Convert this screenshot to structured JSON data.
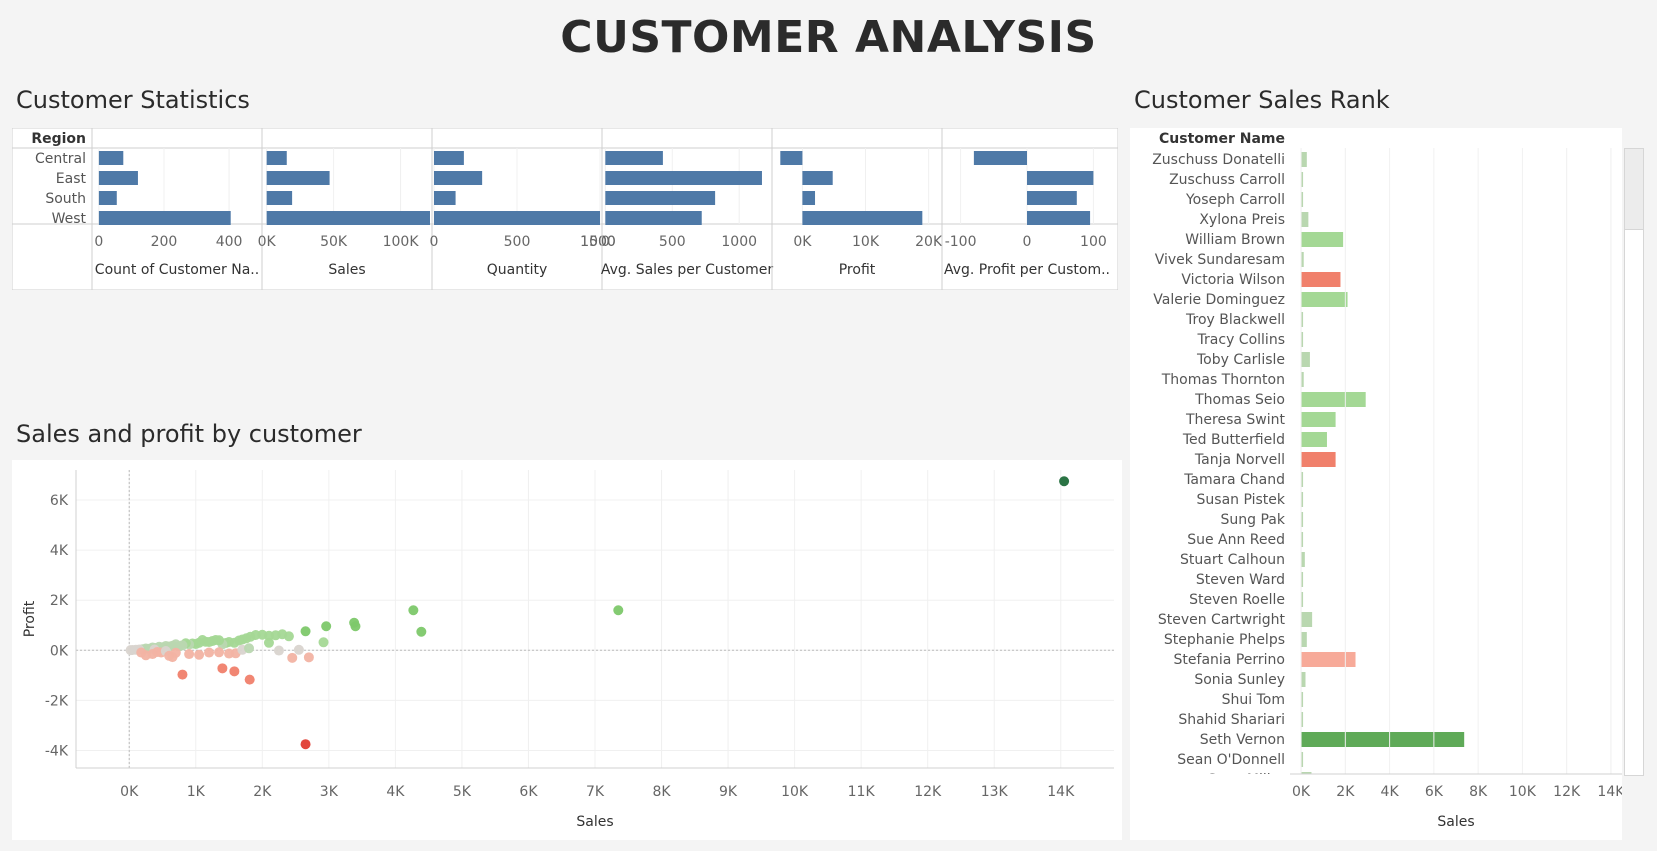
{
  "dashboard": {
    "title": "CUSTOMER ANALYSIS"
  },
  "sections": {
    "stats_title": "Customer Statistics",
    "scatter_title": "Sales and profit by customer",
    "rank_title": "Customer Sales Rank"
  },
  "colors": {
    "bar_blue": "#4e79a7",
    "profit_high": "#1f6b3a",
    "profit_mid": "#7dc86a",
    "profit_low_pos": "#b9d7b0",
    "profit_neutral": "#d9d4cf",
    "profit_low_neg": "#f2b3a3",
    "profit_mid_neg": "#f0806b",
    "profit_very_neg": "#e03c31"
  },
  "chart_data": [
    {
      "type": "bar",
      "title": "Customer Statistics",
      "row_header": "Region",
      "categories": [
        "Central",
        "East",
        "South",
        "West"
      ],
      "series": [
        {
          "name": "Count of Customer Na..",
          "values": [
            75,
            120,
            55,
            405
          ],
          "xlim": [
            -15,
            495
          ],
          "ticks": [
            0,
            200,
            400
          ],
          "tick_labels": [
            "0",
            "200",
            "400"
          ]
        },
        {
          "name": "Sales",
          "values": [
            15000,
            47000,
            19000,
            122000
          ],
          "xlim": [
            -2000,
            122000
          ],
          "ticks": [
            0,
            50000,
            100000
          ],
          "tick_labels": [
            "0K",
            "50K",
            "100K"
          ]
        },
        {
          "name": "Quantity",
          "values": [
            180,
            290,
            130,
            1000
          ],
          "xlim": [
            0,
            1000
          ],
          "ticks": [
            0,
            500,
            1000,
            1500
          ],
          "tick_labels": [
            "0",
            "500",
            "1000",
            "1500"
          ]
        },
        {
          "name": "Avg. Sales per Customer",
          "values": [
            430,
            1170,
            820,
            720
          ],
          "xlim": [
            -10,
            1230
          ],
          "ticks": [
            0,
            500,
            1000
          ],
          "tick_labels": [
            "0",
            "500",
            "1000"
          ]
        },
        {
          "name": "Profit",
          "values": [
            -3500,
            4800,
            2000,
            19000
          ],
          "xlim": [
            -4500,
            21800
          ],
          "ticks": [
            0,
            10000,
            20000
          ],
          "tick_labels": [
            "0K",
            "10K",
            "20K"
          ]
        },
        {
          "name": "Avg. Profit per Custom..",
          "values": [
            -80,
            100,
            75,
            95
          ],
          "xlim": [
            -125,
            125
          ],
          "ticks": [
            -100,
            0,
            100
          ],
          "tick_labels": [
            "-100",
            "0",
            "100"
          ]
        }
      ]
    },
    {
      "type": "scatter",
      "title": "Sales and profit by customer",
      "xlabel": "Sales",
      "ylabel": "Profit",
      "xlim": [
        -800,
        14800
      ],
      "ylim": [
        -4700,
        7200
      ],
      "x_ticks": [
        0,
        1000,
        2000,
        3000,
        4000,
        5000,
        6000,
        7000,
        8000,
        9000,
        10000,
        11000,
        12000,
        13000,
        14000
      ],
      "x_tick_labels": [
        "0K",
        "1K",
        "2K",
        "3K",
        "4K",
        "5K",
        "6K",
        "7K",
        "8K",
        "9K",
        "10K",
        "11K",
        "12K",
        "13K",
        "14K"
      ],
      "y_ticks": [
        -4000,
        -2000,
        0,
        2000,
        4000,
        6000
      ],
      "y_tick_labels": [
        "-4K",
        "-2K",
        "0K",
        "2K",
        "4K",
        "6K"
      ],
      "points": [
        [
          14050,
          6750
        ],
        [
          7350,
          1600
        ],
        [
          4270,
          1600
        ],
        [
          4390,
          740
        ],
        [
          3380,
          1100
        ],
        [
          3400,
          960
        ],
        [
          2960,
          960
        ],
        [
          2920,
          320
        ],
        [
          2650,
          760
        ],
        [
          2700,
          -280
        ],
        [
          2400,
          560
        ],
        [
          2450,
          -300
        ],
        [
          2300,
          640
        ],
        [
          2200,
          600
        ],
        [
          2100,
          580
        ],
        [
          2000,
          620
        ],
        [
          1900,
          610
        ],
        [
          1820,
          540
        ],
        [
          1760,
          480
        ],
        [
          1700,
          430
        ],
        [
          1650,
          390
        ],
        [
          1580,
          300
        ],
        [
          1500,
          330
        ],
        [
          1450,
          290
        ],
        [
          1400,
          240
        ],
        [
          1350,
          400
        ],
        [
          1300,
          410
        ],
        [
          1250,
          370
        ],
        [
          1200,
          330
        ],
        [
          1150,
          340
        ],
        [
          1100,
          410
        ],
        [
          1050,
          300
        ],
        [
          1000,
          250
        ],
        [
          950,
          270
        ],
        [
          900,
          230
        ],
        [
          850,
          280
        ],
        [
          800,
          200
        ],
        [
          750,
          160
        ],
        [
          700,
          240
        ],
        [
          650,
          180
        ],
        [
          600,
          150
        ],
        [
          550,
          170
        ],
        [
          500,
          120
        ],
        [
          450,
          140
        ],
        [
          400,
          90
        ],
        [
          350,
          110
        ],
        [
          300,
          60
        ],
        [
          250,
          70
        ],
        [
          200,
          40
        ],
        [
          150,
          30
        ],
        [
          100,
          20
        ],
        [
          50,
          10
        ],
        [
          20,
          5
        ],
        [
          380,
          30
        ],
        [
          420,
          -70
        ],
        [
          480,
          -90
        ],
        [
          550,
          -30
        ],
        [
          600,
          -220
        ],
        [
          650,
          -270
        ],
        [
          700,
          -100
        ],
        [
          900,
          -150
        ],
        [
          1050,
          -180
        ],
        [
          1200,
          -90
        ],
        [
          1350,
          -80
        ],
        [
          1500,
          -130
        ],
        [
          1600,
          -120
        ],
        [
          2250,
          -10
        ],
        [
          1700,
          20
        ],
        [
          1800,
          80
        ],
        [
          2100,
          300
        ],
        [
          2550,
          20
        ],
        [
          250,
          -200
        ],
        [
          350,
          -150
        ],
        [
          180,
          -90
        ],
        [
          800,
          -970
        ],
        [
          1400,
          -720
        ],
        [
          1580,
          -840
        ],
        [
          1810,
          -1170
        ],
        [
          2650,
          -3750
        ]
      ]
    },
    {
      "type": "bar",
      "title": "Customer Sales Rank",
      "row_header": "Customer Name",
      "xlabel": "Sales",
      "xlim": [
        -500,
        14500
      ],
      "ticks": [
        0,
        2000,
        4000,
        6000,
        8000,
        10000,
        12000,
        14000
      ],
      "tick_labels": [
        "0K",
        "2K",
        "4K",
        "6K",
        "8K",
        "10K",
        "12K",
        "14K"
      ],
      "categories": [
        "Zuschuss Donatelli",
        "Zuschuss Carroll",
        "Yoseph Carroll",
        "Xylona Preis",
        "William Brown",
        "Vivek Sundaresam",
        "Victoria Wilson",
        "Valerie Dominguez",
        "Troy Blackwell",
        "Tracy Collins",
        "Toby Carlisle",
        "Thomas Thornton",
        "Thomas Seio",
        "Theresa Swint",
        "Ted Butterfield",
        "Tanja Norvell",
        "Tamara Chand",
        "Susan Pistek",
        "Sung Pak",
        "Sue Ann Reed",
        "Stuart Calhoun",
        "Steven Ward",
        "Steven Roelle",
        "Steven Cartwright",
        "Stephanie Phelps",
        "Stefania Perrino",
        "Sonia Sunley",
        "Shui Tom",
        "Shahid Shariari",
        "Seth Vernon",
        "Sean O'Donnell",
        "Sean Miller"
      ],
      "values": [
        260,
        90,
        20,
        330,
        1900,
        120,
        1780,
        2100,
        15,
        25,
        400,
        120,
        2920,
        1560,
        1170,
        1560,
        50,
        10,
        10,
        80,
        170,
        90,
        15,
        500,
        260,
        2460,
        200,
        50,
        20,
        7370,
        20,
        470
      ],
      "profit_class": [
        "low_pos",
        "low_pos",
        "low_pos",
        "low_pos",
        "mid",
        "low_pos",
        "mid_neg",
        "mid",
        "low_pos",
        "low_pos",
        "low_pos",
        "low_pos",
        "mid",
        "mid",
        "mid",
        "mid_neg",
        "low_pos",
        "low_pos",
        "low_pos",
        "low_pos",
        "low_pos",
        "low_pos",
        "low_pos",
        "low_pos",
        "low_pos",
        "low_neg",
        "low_pos",
        "low_pos",
        "low_pos",
        "high_green",
        "low_pos",
        "low_pos"
      ]
    }
  ]
}
